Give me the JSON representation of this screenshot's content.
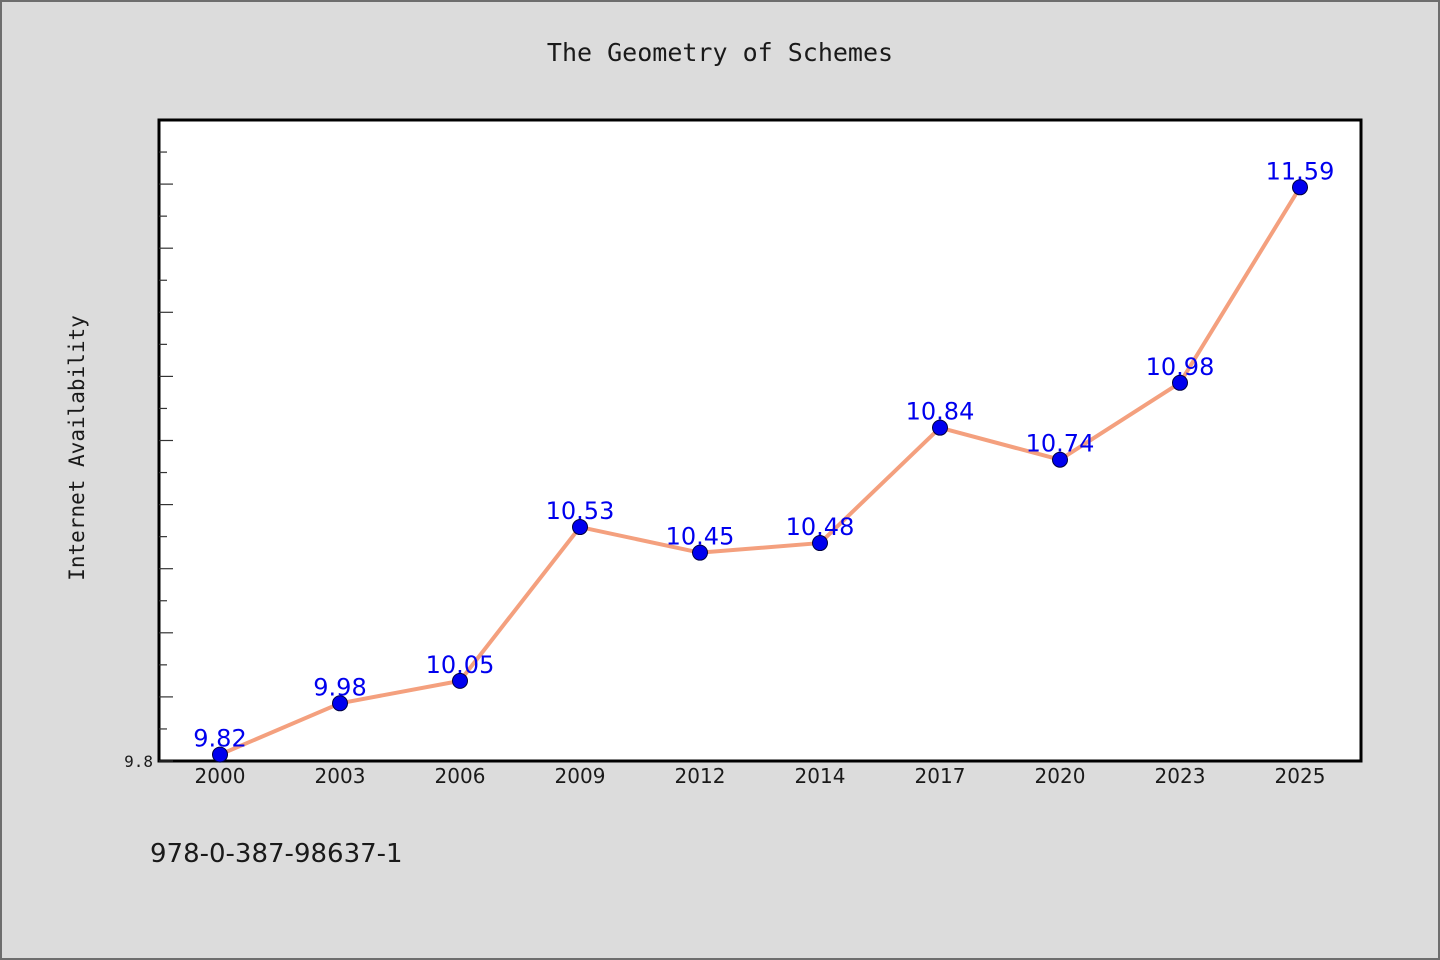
{
  "chart_data": {
    "type": "line",
    "title": "The Geometry of Schemes",
    "xlabel": "",
    "ylabel": "Internet Availability",
    "categories": [
      "2000",
      "2003",
      "2006",
      "2009",
      "2012",
      "2014",
      "2017",
      "2020",
      "2023",
      "2025"
    ],
    "series": [
      {
        "values": [
          9.82,
          9.98,
          10.05,
          10.53,
          10.45,
          10.48,
          10.84,
          10.74,
          10.98,
          11.59
        ]
      }
    ],
    "data_labels": [
      "9.82",
      "9.98",
      "10.05",
      "10.53",
      "10.45",
      "10.48",
      "10.84",
      "10.74",
      "10.98",
      "11.59"
    ],
    "ylim": [
      9.8,
      11.8
    ],
    "ytick_labels": [
      "9.8"
    ],
    "grid": false,
    "colors": {
      "background": "#dcdcdc",
      "plot_background": "#ffffff",
      "line": "#f4a07e",
      "marker": "#0000ee",
      "data_label": "#0000ee"
    }
  },
  "footer": {
    "isbn": "978-0-387-98637-1"
  }
}
